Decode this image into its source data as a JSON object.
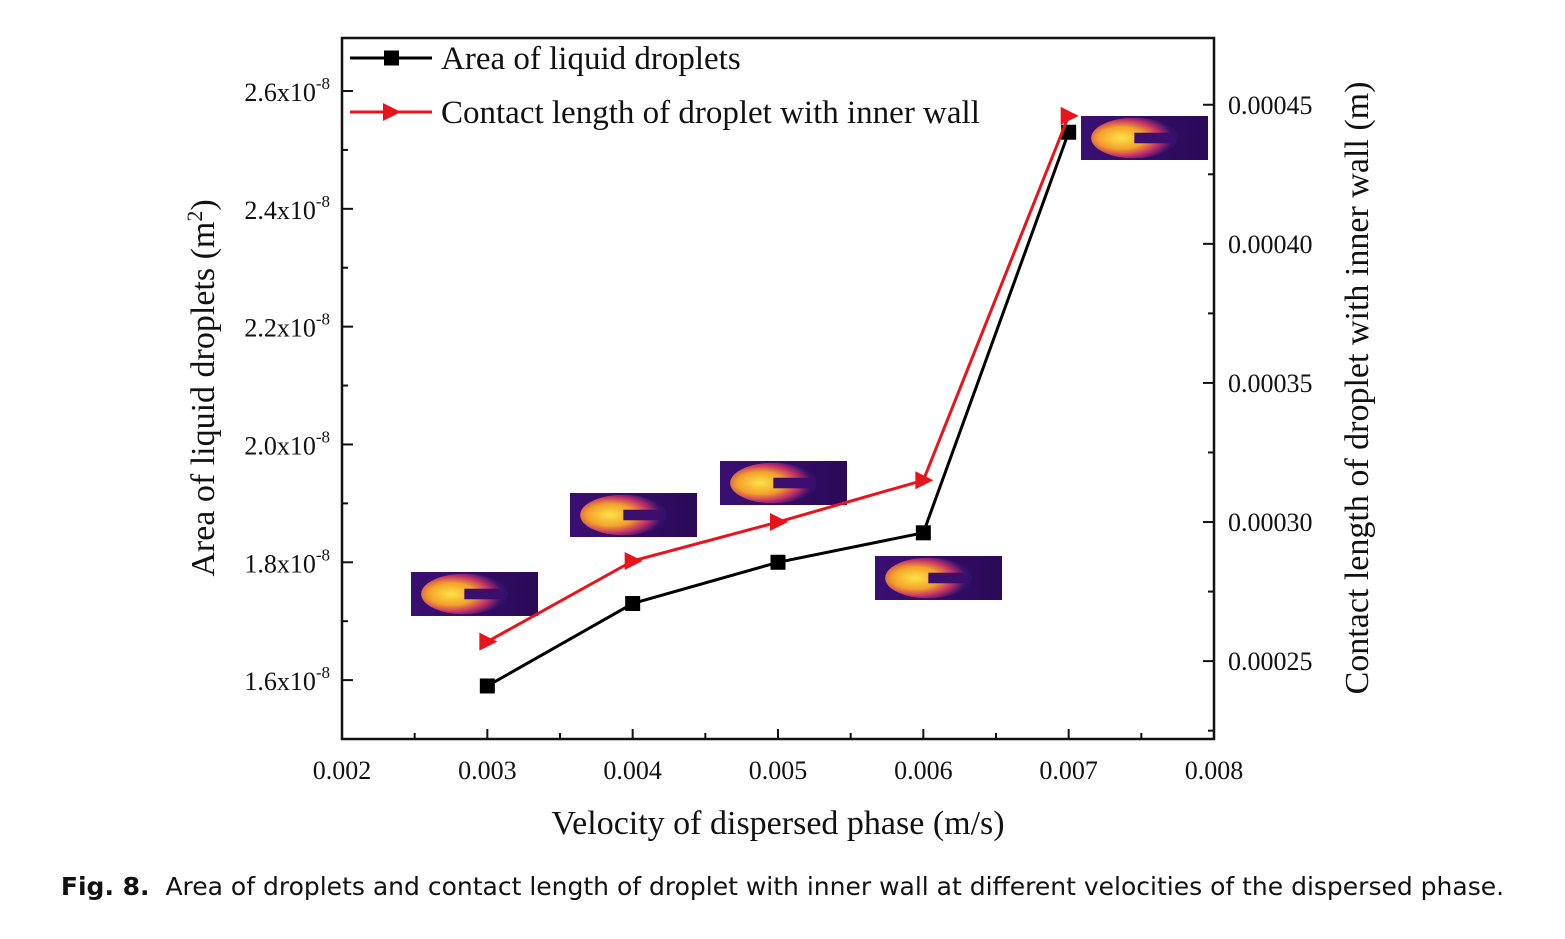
{
  "chart_data": {
    "type": "line",
    "xlabel": "Velocity of dispersed phase (m/s)",
    "ylabel_left": "Area of liquid droplets (m",
    "ylabel_left_sup": "2",
    "ylabel_left_close": ")",
    "ylabel_right": "Contact length of droplet with inner wall (m)",
    "xlim": [
      0.002,
      0.008
    ],
    "x_ticks": [
      "0.002",
      "0.003",
      "0.004",
      "0.005",
      "0.006",
      "0.007",
      "0.008"
    ],
    "y_left_ticks": [
      {
        "base": "1.6x10",
        "exp": "-8"
      },
      {
        "base": "1.8x10",
        "exp": "-8"
      },
      {
        "base": "2.0x10",
        "exp": "-8"
      },
      {
        "base": "2.2x10",
        "exp": "-8"
      },
      {
        "base": "2.4x10",
        "exp": "-8"
      },
      {
        "base": "2.6x10",
        "exp": "-8"
      }
    ],
    "y_right_ticks": [
      "0.00025",
      "0.00030",
      "0.00035",
      "0.00040",
      "0.00045"
    ],
    "ylim_left": [
      1.5e-08,
      2.69e-08
    ],
    "ylim_right": [
      0.000222,
      0.000474
    ],
    "series": [
      {
        "name": "Area of liquid droplets",
        "axis": "left",
        "color": "#000000",
        "marker": "square",
        "x": [
          0.003,
          0.004,
          0.005,
          0.006,
          0.007
        ],
        "y": [
          1.59e-08,
          1.73e-08,
          1.8e-08,
          1.85e-08,
          2.53e-08
        ]
      },
      {
        "name": "Contact length of droplet with inner wall",
        "axis": "right",
        "color": "#e8141c",
        "marker": "triangle-right",
        "x": [
          0.003,
          0.004,
          0.005,
          0.006,
          0.007
        ],
        "y": [
          0.000257,
          0.000286,
          0.0003,
          0.000315,
          0.000446
        ]
      }
    ],
    "inset_images": [
      {
        "name": "droplet-snapshot-0.003",
        "colormap": [
          "#2a0a5e",
          "#d8246b",
          "#f9c23c"
        ]
      },
      {
        "name": "droplet-snapshot-0.004",
        "colormap": [
          "#2a0a5e",
          "#d8246b",
          "#f9c23c"
        ]
      },
      {
        "name": "droplet-snapshot-0.005",
        "colormap": [
          "#2a0a5e",
          "#d8246b",
          "#f9c23c"
        ]
      },
      {
        "name": "droplet-snapshot-0.006",
        "colormap": [
          "#2a0a5e",
          "#d8246b",
          "#f9c23c"
        ]
      },
      {
        "name": "droplet-snapshot-0.007",
        "colormap": [
          "#2a0a5e",
          "#d8246b",
          "#f9c23c"
        ]
      }
    ],
    "legend_placement": "top-left"
  },
  "caption": {
    "label": "Fig. 8.",
    "text": "Area of droplets and contact length of droplet with inner wall at different velocities of the dispersed phase."
  }
}
